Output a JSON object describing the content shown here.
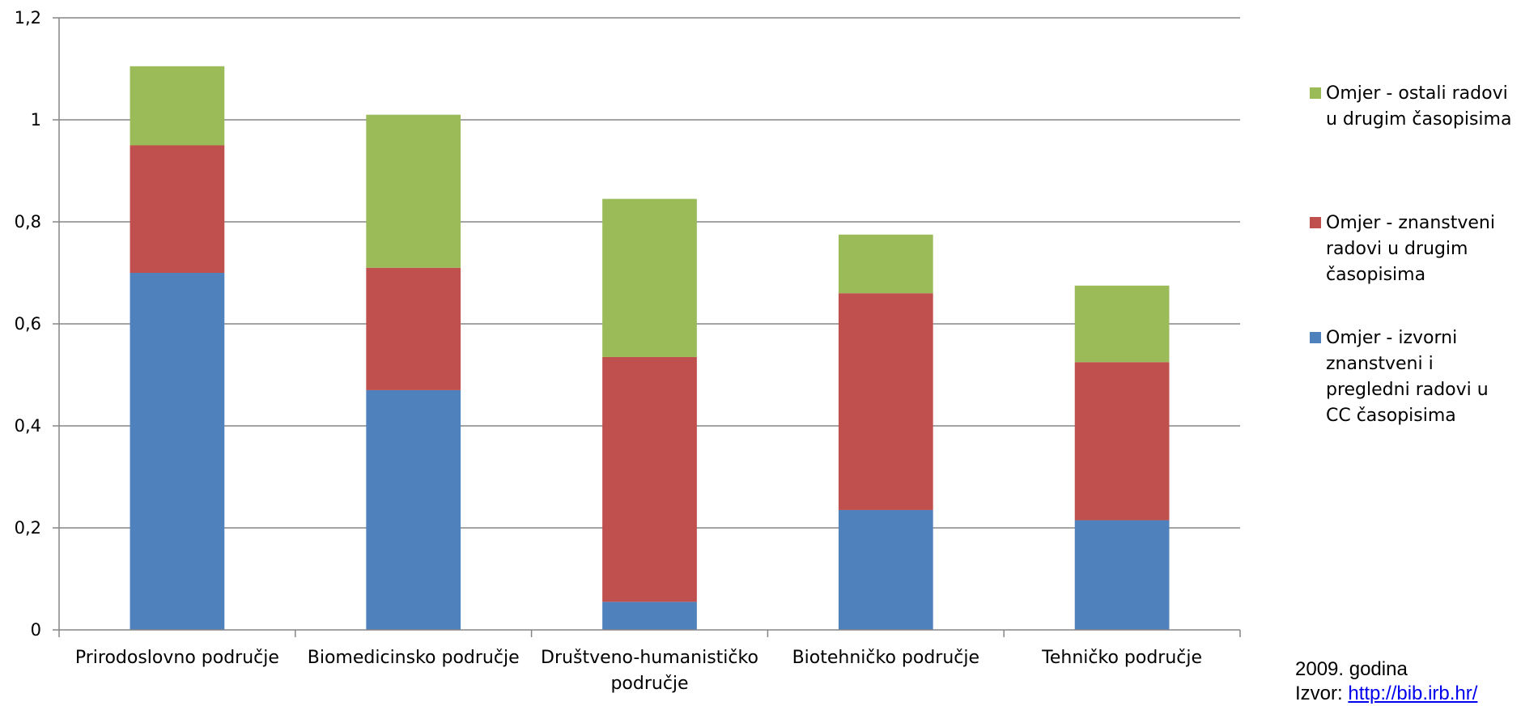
{
  "chart_data": {
    "type": "bar",
    "stacked": true,
    "title": "",
    "xlabel": "",
    "ylabel": "",
    "ylim": [
      0,
      1.2
    ],
    "yticks": [
      "0",
      "0,2",
      "0,4",
      "0,6",
      "0,8",
      "1",
      "1,2"
    ],
    "categories": [
      "Prirodoslovno područje",
      "Biomedicinsko područje",
      "Društveno-humanističko područje",
      "Biotehničko područje",
      "Tehničko područje"
    ],
    "series": [
      {
        "name": "Omjer - izvorni znanstveni i pregledni radovi u CC časopisima",
        "color": "#4F81BD",
        "values": [
          0.7,
          0.47,
          0.055,
          0.235,
          0.215
        ]
      },
      {
        "name": "Omjer - znanstveni radovi u drugim časopisima",
        "color": "#C0504D",
        "values": [
          0.25,
          0.24,
          0.48,
          0.425,
          0.31
        ]
      },
      {
        "name": "Omjer - ostali radovi u drugim časopisima",
        "color": "#9BBB59",
        "values": [
          0.155,
          0.3,
          0.31,
          0.115,
          0.15
        ]
      }
    ],
    "grid": true,
    "legend_position": "right"
  },
  "legend": {
    "items": [
      {
        "label": "Omjer - ostali radovi u drugim časopisima",
        "color": "#9BBB59"
      },
      {
        "label": "Omjer - znanstveni radovi u drugim časopisima",
        "color": "#C0504D"
      },
      {
        "label": "Omjer - izvorni znanstveni i pregledni radovi u CC časopisima",
        "color": "#4F81BD"
      }
    ]
  },
  "note": {
    "year": "2009. godina",
    "source_prefix": "Izvor: ",
    "source_link": "http://bib.irb.hr/"
  }
}
